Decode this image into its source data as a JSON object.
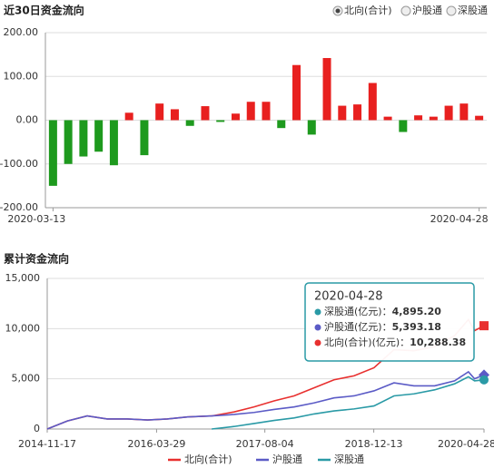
{
  "chart_data": [
    {
      "type": "bar",
      "title": "近30日资金流向",
      "options": [
        {
          "label": "北向(合计)",
          "selected": true
        },
        {
          "label": "沪股通",
          "selected": false
        },
        {
          "label": "深股通",
          "selected": false
        }
      ],
      "categories": [
        "2020-03-13",
        null,
        null,
        null,
        null,
        null,
        null,
        null,
        null,
        null,
        null,
        null,
        null,
        null,
        null,
        null,
        null,
        null,
        null,
        null,
        null,
        null,
        null,
        null,
        null,
        null,
        null,
        null,
        "2020-04-28"
      ],
      "values": [
        -150,
        -100,
        -83,
        -72,
        -103,
        17,
        -80,
        38,
        25,
        -13,
        32,
        -4,
        15,
        42,
        42,
        -18,
        126,
        -33,
        142,
        33,
        36,
        85,
        8,
        -27,
        11,
        8,
        33,
        38,
        10
      ],
      "up_color": "#e8201f",
      "down_color": "#1e9a1e",
      "ylim": [
        -200,
        200
      ],
      "yticks": [
        {
          "value": 200,
          "label": "200.00"
        },
        {
          "value": 100,
          "label": "100.00"
        },
        {
          "value": 0,
          "label": "0.00"
        },
        {
          "value": -100,
          "label": "-100.00"
        },
        {
          "value": -200,
          "label": "-200.00"
        }
      ],
      "grid": true
    },
    {
      "type": "line",
      "title": "累计资金流向",
      "x": [
        "2014-11-17",
        "2015-02-17",
        "2015-05-18",
        "2015-08-17",
        "2015-11-17",
        "2016-02-17",
        "2016-05-17",
        "2016-08-17",
        "2016-12-05",
        "2017-03-17",
        "2017-06-16",
        "2017-09-15",
        "2017-12-15",
        "2018-03-16",
        "2018-06-15",
        "2018-09-14",
        "2018-12-14",
        "2019-03-15",
        "2019-06-14",
        "2019-09-16",
        "2019-12-16",
        "2020-02-17",
        "2020-03-16",
        "2020-04-28"
      ],
      "xlim": [
        "2014-11-17",
        "2020-04-28"
      ],
      "xticks": [
        "2014-11-17",
        "2016-03-29",
        "2017-08-04",
        "2018-12-13",
        "2020-04-28"
      ],
      "ylim": [
        0,
        15000
      ],
      "yticks": [
        0,
        {
          "value": 5000,
          "label": "5,000"
        },
        {
          "value": 10000,
          "label": "10,000"
        },
        {
          "value": 15000,
          "label": "15,000"
        }
      ],
      "grid": true,
      "series": [
        {
          "name": "北向(合计)",
          "color": "#e8302f",
          "marker": "square",
          "values": [
            0,
            800,
            1300,
            1000,
            1000,
            900,
            1000,
            1200,
            1300,
            1700,
            2200,
            2800,
            3300,
            4100,
            4900,
            5300,
            6100,
            7900,
            7800,
            8200,
            9300,
            10900,
            9800,
            10288.38
          ]
        },
        {
          "name": "沪股通",
          "color": "#5b5bc6",
          "marker": "diamond",
          "values": [
            0,
            800,
            1300,
            1000,
            1000,
            900,
            1000,
            1200,
            1300,
            1450,
            1650,
            1950,
            2200,
            2600,
            3100,
            3300,
            3800,
            4600,
            4300,
            4300,
            4800,
            5700,
            5000,
            5393.18
          ]
        },
        {
          "name": "深股通",
          "color": "#2a9aa6",
          "marker": "circle",
          "values": [
            null,
            null,
            null,
            null,
            null,
            null,
            null,
            null,
            0,
            250,
            550,
            850,
            1100,
            1500,
            1800,
            2000,
            2300,
            3300,
            3500,
            3900,
            4500,
            5200,
            4800,
            4895.2
          ]
        }
      ],
      "tooltip": {
        "date": "2020-04-28",
        "items": [
          {
            "label": "深股通(亿元)：",
            "value": "4,895.20",
            "color": "#2a9aa6"
          },
          {
            "label": "沪股通(亿元)：",
            "value": "5,393.18",
            "color": "#5b5bc6"
          },
          {
            "label": "北向(合计)(亿元)：",
            "value": "10,288.38",
            "color": "#e8302f"
          }
        ]
      }
    }
  ]
}
